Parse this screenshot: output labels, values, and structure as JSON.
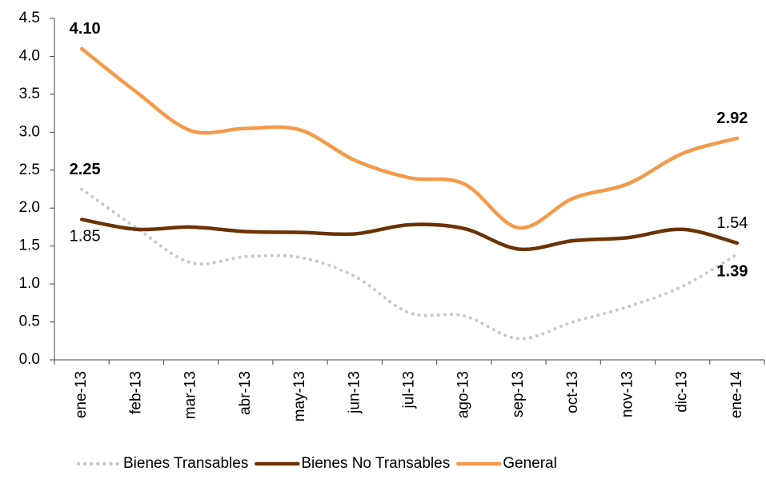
{
  "chart_data": {
    "type": "line",
    "categories": [
      "ene-13",
      "feb-13",
      "mar-13",
      "abr-13",
      "may-13",
      "jun-13",
      "jul-13",
      "ago-13",
      "sep-13",
      "oct-13",
      "nov-13",
      "dic-13",
      "ene-14"
    ],
    "series": [
      {
        "name": "Bienes Transables",
        "color": "#c8c8c8",
        "dash": "dotted",
        "label_color": "#9c9660",
        "label_bold": true,
        "values": [
          2.25,
          1.74,
          1.28,
          1.36,
          1.35,
          1.1,
          0.62,
          0.58,
          0.28,
          0.5,
          0.7,
          0.97,
          1.39
        ],
        "value_labels": [
          "2.25",
          null,
          null,
          null,
          null,
          null,
          null,
          null,
          null,
          null,
          null,
          null,
          "1.39"
        ]
      },
      {
        "name": "Bienes No Transables",
        "color": "#6b3304",
        "dash": "solid",
        "label_color": "#000000",
        "label_bold": false,
        "values": [
          1.85,
          1.72,
          1.75,
          1.69,
          1.68,
          1.66,
          1.78,
          1.73,
          1.46,
          1.57,
          1.61,
          1.72,
          1.54
        ],
        "value_labels": [
          "1.85",
          null,
          null,
          null,
          null,
          null,
          null,
          null,
          null,
          null,
          null,
          null,
          "1.54"
        ]
      },
      {
        "name": "General",
        "color": "#f39b4a",
        "dash": "solid",
        "label_color": "#e08a3c",
        "label_bold": true,
        "values": [
          4.1,
          3.53,
          3.02,
          3.05,
          3.03,
          2.63,
          2.4,
          2.32,
          1.74,
          2.13,
          2.32,
          2.72,
          2.92
        ],
        "value_labels": [
          "4.10",
          null,
          null,
          null,
          null,
          null,
          null,
          null,
          null,
          null,
          null,
          null,
          "2.92"
        ]
      }
    ],
    "ylim": [
      0,
      4.5
    ],
    "yticks": [
      {
        "value": 0,
        "label": "0.0"
      },
      0.5,
      {
        "value": 1,
        "label": "1.0"
      },
      1.5,
      {
        "value": 2,
        "label": "2.0"
      },
      2.5,
      {
        "value": 3,
        "label": "3.0"
      },
      3.5,
      {
        "value": 4,
        "label": "4.0"
      },
      4.5
    ],
    "grid": false,
    "legend": "bottom"
  }
}
